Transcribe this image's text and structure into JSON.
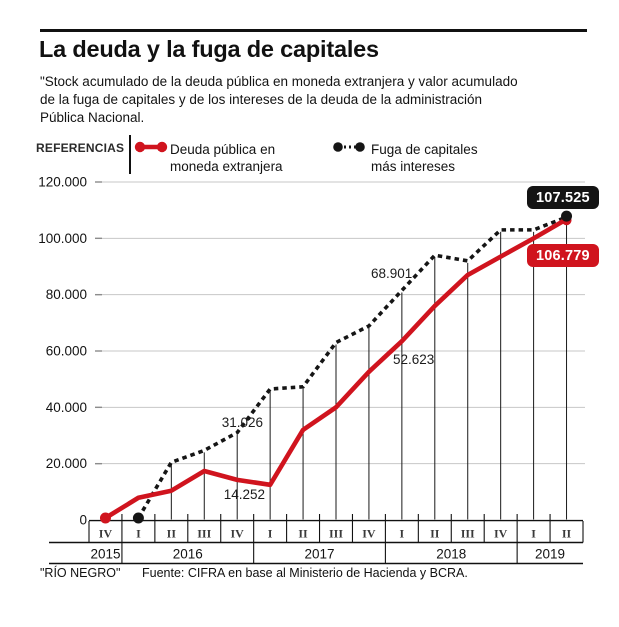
{
  "header": {
    "title": "La deuda y la fuga de capitales",
    "subtitle": "\"Stock acumulado de la deuda pública en moneda extranjera y valor acumulado de la fuga de capitales y de los intereses de la deuda de la administración Pública Nacional."
  },
  "legend": {
    "label": "REFERENCIAS",
    "series": [
      {
        "name": "Deuda pública en moneda extranjera",
        "color": "#d0141e",
        "style": "solid"
      },
      {
        "name": "Fuga de capitales más intereses",
        "color": "#151515",
        "style": "dotted"
      }
    ]
  },
  "footer": {
    "credit": "\"RÍO NEGRO\"",
    "source": "Fuente: CIFRA en base al Ministerio de Hacienda y BCRA."
  },
  "chart_data": {
    "type": "line",
    "title": "La deuda y la fuga de capitales",
    "x_labels": [
      "IV",
      "I",
      "II",
      "III",
      "IV",
      "I",
      "II",
      "III",
      "IV",
      "I",
      "II",
      "III",
      "IV",
      "I",
      "II"
    ],
    "x_quarters_full": [
      "2015-IV",
      "2016-I",
      "2016-II",
      "2016-III",
      "2016-IV",
      "2017-I",
      "2017-II",
      "2017-III",
      "2017-IV",
      "2018-I",
      "2018-II",
      "2018-III",
      "2018-IV",
      "2019-I",
      "2019-II"
    ],
    "years": [
      {
        "label": "2015",
        "span": 1
      },
      {
        "label": "2016",
        "span": 4
      },
      {
        "label": "2017",
        "span": 4
      },
      {
        "label": "2018",
        "span": 4
      },
      {
        "label": "2019",
        "span": 2
      }
    ],
    "yticks": [
      "0",
      "20.000",
      "40.000",
      "60.000",
      "80.000",
      "100.000",
      "120.000"
    ],
    "ytick_step": 20000,
    "ylim": [
      0,
      120000
    ],
    "grid": true,
    "legend_position": "top",
    "series": [
      {
        "name": "Deuda pública en moneda extranjera",
        "color": "#d0141e",
        "style": "solid",
        "values": [
          0,
          7900,
          10400,
          17400,
          14252,
          12500,
          32000,
          40000,
          52623,
          63500,
          76000,
          87000,
          93500,
          100000,
          106779
        ]
      },
      {
        "name": "Fuga de capitales más intereses",
        "color": "#151515",
        "style": "dotted",
        "values": [
          null,
          0,
          20500,
          24700,
          31026,
          46500,
          47300,
          63000,
          68901,
          81500,
          94000,
          92000,
          103000,
          103000,
          107525
        ]
      }
    ],
    "annotations": [
      {
        "text": "31.026",
        "value": 31026,
        "series": "Fuga de capitales más intereses",
        "x": "2016-IV"
      },
      {
        "text": "14.252",
        "value": 14252,
        "series": "Deuda pública en moneda extranjera",
        "x": "2016-IV"
      },
      {
        "text": "68.901",
        "value": 68901,
        "series": "Fuga de capitales más intereses",
        "x": "2017-IV"
      },
      {
        "text": "52.623",
        "value": 52623,
        "series": "Deuda pública en moneda extranjera",
        "x": "2017-IV"
      }
    ],
    "end_labels": [
      {
        "text": "107.525",
        "value": 107525,
        "series": "Fuga de capitales más intereses",
        "x": "2019-II"
      },
      {
        "text": "106.779",
        "value": 106779,
        "series": "Deuda pública en moneda extranjera",
        "x": "2019-II"
      }
    ]
  }
}
